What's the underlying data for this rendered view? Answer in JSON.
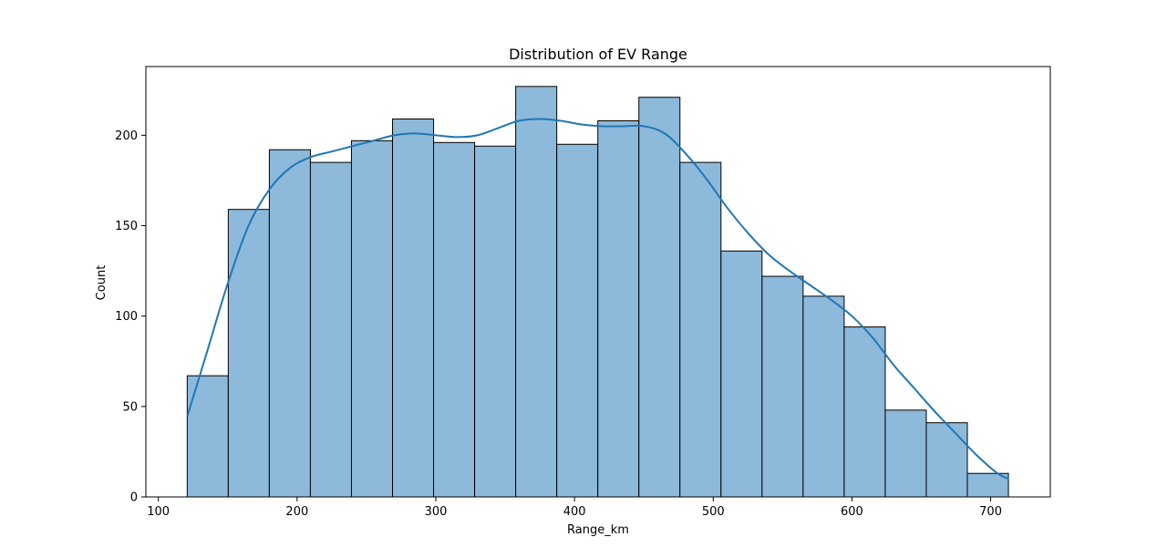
{
  "chart_data": {
    "type": "bar",
    "subtype": "histogram-with-kde",
    "title": "Distribution of EV Range",
    "xlabel": "Range_km",
    "ylabel": "Count",
    "xlim": [
      91,
      743
    ],
    "ylim": [
      0,
      238
    ],
    "x_ticks": [
      100,
      200,
      300,
      400,
      500,
      600,
      700
    ],
    "y_ticks": [
      0,
      50,
      100,
      150,
      200
    ],
    "grid": false,
    "bin_edges": [
      120.8,
      150.4,
      180.0,
      209.6,
      239.2,
      268.8,
      298.4,
      328.0,
      357.6,
      387.2,
      416.8,
      446.4,
      476.0,
      505.6,
      535.2,
      564.8,
      594.4,
      624.0,
      653.6,
      683.2,
      712.8
    ],
    "values": [
      67,
      159,
      192,
      185,
      197,
      209,
      196,
      194,
      227,
      195,
      208,
      221,
      185,
      136,
      122,
      111,
      94,
      48,
      41,
      13
    ],
    "bar_color": "#8db9db",
    "bar_edge_color": "#000000",
    "kde": {
      "color": "#1f77b4",
      "x": [
        121,
        135,
        150,
        165,
        180,
        195,
        210,
        225,
        240,
        255,
        270,
        285,
        300,
        315,
        330,
        345,
        360,
        375,
        390,
        405,
        420,
        435,
        450,
        465,
        480,
        495,
        510,
        525,
        540,
        555,
        570,
        585,
        600,
        615,
        630,
        645,
        660,
        675,
        690,
        705,
        713
      ],
      "y": [
        45,
        80,
        118,
        150,
        170,
        182,
        188,
        191,
        194,
        197,
        200,
        201,
        200,
        199,
        200,
        204,
        208,
        209,
        208,
        206,
        205,
        205,
        205,
        201,
        190,
        176,
        160,
        146,
        134,
        125,
        117,
        109,
        100,
        88,
        73,
        60,
        47,
        35,
        23,
        13,
        10
      ]
    }
  }
}
